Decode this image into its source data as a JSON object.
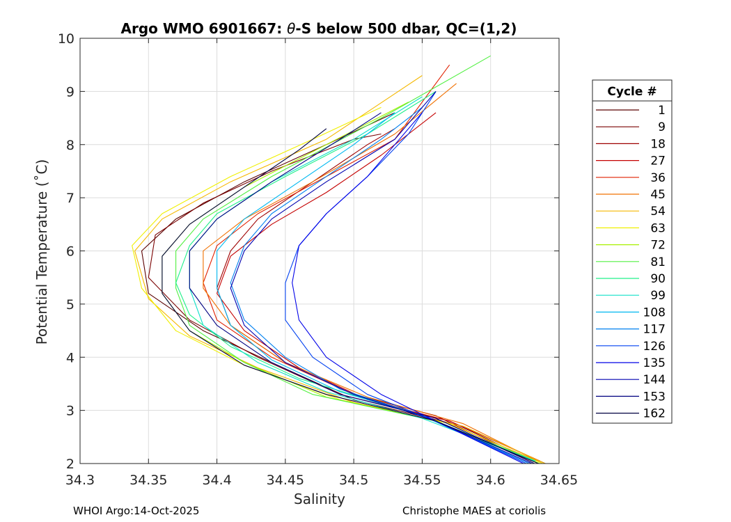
{
  "chart_data": {
    "type": "line",
    "title_prefix": "Argo WMO 6901667: ",
    "title_symbol": "θ",
    "title_suffix": "-S below 500 dbar,  QC=(1,2)",
    "xlabel": "Salinity",
    "ylabel": "Potential Temperature (˚C)",
    "xlim": [
      34.3,
      34.65
    ],
    "ylim": [
      2,
      10
    ],
    "xticks": [
      "34.3",
      "34.35",
      "34.4",
      "34.45",
      "34.5",
      "34.55",
      "34.6",
      "34.65"
    ],
    "yticks": [
      "2",
      "3",
      "4",
      "5",
      "6",
      "7",
      "8",
      "9",
      "10"
    ],
    "grid": true,
    "legend_position": "right",
    "legend": {
      "title": "Cycle #",
      "entries": [
        {
          "label": "1",
          "color": "#5a0000"
        },
        {
          "label": "9",
          "color": "#7a0000"
        },
        {
          "label": "18",
          "color": "#9e0000"
        },
        {
          "label": "27",
          "color": "#c40000"
        },
        {
          "label": "36",
          "color": "#e02000"
        },
        {
          "label": "45",
          "color": "#f07000"
        },
        {
          "label": "54",
          "color": "#f5b800"
        },
        {
          "label": "63",
          "color": "#f0f000"
        },
        {
          "label": "72",
          "color": "#a8f000"
        },
        {
          "label": "81",
          "color": "#50f040"
        },
        {
          "label": "90",
          "color": "#20f08a"
        },
        {
          "label": "99",
          "color": "#10e0c8"
        },
        {
          "label": "108",
          "color": "#00b8f0"
        },
        {
          "label": "117",
          "color": "#0080f0"
        },
        {
          "label": "126",
          "color": "#0040f0"
        },
        {
          "label": "135",
          "color": "#0000e8"
        },
        {
          "label": "144",
          "color": "#0000b0"
        },
        {
          "label": "153",
          "color": "#000080"
        },
        {
          "label": "162",
          "color": "#000040"
        }
      ]
    },
    "series": [
      {
        "name": "1",
        "color": "#5a0000",
        "points": [
          [
            34.64,
            2.0
          ],
          [
            34.58,
            2.7
          ],
          [
            34.5,
            3.2
          ],
          [
            34.44,
            3.9
          ],
          [
            34.39,
            4.5
          ],
          [
            34.35,
            5.2
          ],
          [
            34.345,
            6.0
          ],
          [
            34.37,
            6.6
          ],
          [
            34.42,
            7.3
          ],
          [
            34.48,
            8.0
          ],
          [
            34.53,
            8.6
          ]
        ]
      },
      {
        "name": "9",
        "color": "#7a0000",
        "points": [
          [
            34.635,
            2.0
          ],
          [
            34.57,
            2.8
          ],
          [
            34.49,
            3.3
          ],
          [
            34.43,
            4.0
          ],
          [
            34.38,
            4.7
          ],
          [
            34.35,
            5.5
          ],
          [
            34.355,
            6.3
          ],
          [
            34.39,
            6.9
          ],
          [
            34.44,
            7.5
          ],
          [
            34.5,
            8.1
          ],
          [
            34.52,
            8.2
          ]
        ]
      },
      {
        "name": "18",
        "color": "#9e0000",
        "points": [
          [
            34.632,
            2.0
          ],
          [
            34.56,
            2.9
          ],
          [
            34.5,
            3.3
          ],
          [
            34.45,
            3.9
          ],
          [
            34.41,
            4.6
          ],
          [
            34.4,
            5.3
          ],
          [
            34.41,
            6.0
          ],
          [
            34.43,
            6.6
          ],
          [
            34.47,
            7.3
          ],
          [
            34.51,
            8.0
          ],
          [
            34.53,
            8.3
          ]
        ]
      },
      {
        "name": "27",
        "color": "#c40000",
        "points": [
          [
            34.636,
            2.05
          ],
          [
            34.57,
            2.8
          ],
          [
            34.51,
            3.2
          ],
          [
            34.46,
            3.8
          ],
          [
            34.42,
            4.5
          ],
          [
            34.4,
            5.2
          ],
          [
            34.41,
            5.9
          ],
          [
            34.44,
            6.5
          ],
          [
            34.48,
            7.1
          ],
          [
            34.52,
            7.8
          ],
          [
            34.56,
            8.6
          ]
        ]
      },
      {
        "name": "36",
        "color": "#e02000",
        "points": [
          [
            34.634,
            2.05
          ],
          [
            34.56,
            2.85
          ],
          [
            34.5,
            3.3
          ],
          [
            34.44,
            4.0
          ],
          [
            34.4,
            4.7
          ],
          [
            34.39,
            5.4
          ],
          [
            34.4,
            6.1
          ],
          [
            34.43,
            6.7
          ],
          [
            34.48,
            7.4
          ],
          [
            34.53,
            8.1
          ],
          [
            34.57,
            9.5
          ]
        ]
      },
      {
        "name": "45",
        "color": "#f07000",
        "points": [
          [
            34.638,
            2.0
          ],
          [
            34.58,
            2.75
          ],
          [
            34.51,
            3.25
          ],
          [
            34.45,
            3.9
          ],
          [
            34.41,
            4.6
          ],
          [
            34.39,
            5.3
          ],
          [
            34.39,
            6.0
          ],
          [
            34.42,
            6.6
          ],
          [
            34.47,
            7.3
          ],
          [
            34.53,
            8.2
          ],
          [
            34.575,
            9.15
          ]
        ]
      },
      {
        "name": "54",
        "color": "#f5b800",
        "points": [
          [
            34.64,
            2.0
          ],
          [
            34.58,
            2.7
          ],
          [
            34.5,
            3.15
          ],
          [
            34.43,
            3.8
          ],
          [
            34.38,
            4.4
          ],
          [
            34.35,
            5.1
          ],
          [
            34.34,
            6.0
          ],
          [
            34.36,
            6.6
          ],
          [
            34.41,
            7.3
          ],
          [
            34.48,
            8.1
          ],
          [
            34.55,
            9.3
          ]
        ]
      },
      {
        "name": "63",
        "color": "#f0f000",
        "points": [
          [
            34.638,
            2.0
          ],
          [
            34.57,
            2.75
          ],
          [
            34.49,
            3.2
          ],
          [
            34.42,
            3.85
          ],
          [
            34.37,
            4.5
          ],
          [
            34.345,
            5.3
          ],
          [
            34.338,
            6.1
          ],
          [
            34.36,
            6.7
          ],
          [
            34.41,
            7.4
          ],
          [
            34.47,
            8.1
          ],
          [
            34.52,
            8.7
          ]
        ]
      },
      {
        "name": "72",
        "color": "#a8f000",
        "points": [
          [
            34.636,
            2.0
          ],
          [
            34.56,
            2.8
          ],
          [
            34.48,
            3.25
          ],
          [
            34.42,
            3.9
          ],
          [
            34.38,
            4.5
          ],
          [
            34.36,
            5.2
          ],
          [
            34.36,
            5.9
          ],
          [
            34.38,
            6.5
          ],
          [
            34.42,
            7.2
          ],
          [
            34.48,
            8.0
          ],
          [
            34.54,
            8.8
          ]
        ]
      },
      {
        "name": "81",
        "color": "#50f040",
        "points": [
          [
            34.635,
            2.0
          ],
          [
            34.56,
            2.8
          ],
          [
            34.47,
            3.3
          ],
          [
            34.42,
            3.9
          ],
          [
            34.38,
            4.6
          ],
          [
            34.37,
            5.3
          ],
          [
            34.37,
            6.0
          ],
          [
            34.39,
            6.6
          ],
          [
            34.44,
            7.4
          ],
          [
            34.52,
            8.5
          ],
          [
            34.6,
            9.67
          ]
        ]
      },
      {
        "name": "90",
        "color": "#20f08a",
        "points": [
          [
            34.633,
            2.05
          ],
          [
            34.55,
            2.9
          ],
          [
            34.46,
            3.6
          ],
          [
            34.41,
            4.2
          ],
          [
            34.38,
            4.8
          ],
          [
            34.37,
            5.4
          ],
          [
            34.38,
            6.1
          ],
          [
            34.4,
            6.7
          ],
          [
            34.45,
            7.4
          ],
          [
            34.51,
            8.2
          ],
          [
            34.56,
            9.0
          ]
        ]
      },
      {
        "name": "99",
        "color": "#10e0c8",
        "points": [
          [
            34.632,
            2.05
          ],
          [
            34.55,
            2.85
          ],
          [
            34.48,
            3.35
          ],
          [
            34.43,
            3.9
          ],
          [
            34.39,
            4.6
          ],
          [
            34.38,
            5.3
          ],
          [
            34.38,
            6.0
          ],
          [
            34.4,
            6.6
          ],
          [
            34.44,
            7.3
          ],
          [
            34.5,
            8.1
          ],
          [
            34.55,
            8.9
          ]
        ]
      },
      {
        "name": "108",
        "color": "#00b8f0",
        "points": [
          [
            34.63,
            2.0
          ],
          [
            34.55,
            2.9
          ],
          [
            34.49,
            3.35
          ],
          [
            34.44,
            3.95
          ],
          [
            34.41,
            4.6
          ],
          [
            34.4,
            5.3
          ],
          [
            34.4,
            6.0
          ],
          [
            34.42,
            6.6
          ],
          [
            34.46,
            7.3
          ],
          [
            34.5,
            8.0
          ],
          [
            34.53,
            8.6
          ]
        ]
      },
      {
        "name": "117",
        "color": "#0080f0",
        "points": [
          [
            34.628,
            2.0
          ],
          [
            34.55,
            2.9
          ],
          [
            34.49,
            3.4
          ],
          [
            34.45,
            4.0
          ],
          [
            34.42,
            4.7
          ],
          [
            34.41,
            5.4
          ],
          [
            34.42,
            6.1
          ],
          [
            34.44,
            6.7
          ],
          [
            34.48,
            7.4
          ],
          [
            34.52,
            8.1
          ],
          [
            34.55,
            8.7
          ]
        ]
      },
      {
        "name": "126",
        "color": "#0040f0",
        "points": [
          [
            34.626,
            2.0
          ],
          [
            34.56,
            2.8
          ],
          [
            34.51,
            3.3
          ],
          [
            34.47,
            4.0
          ],
          [
            34.45,
            4.7
          ],
          [
            34.45,
            5.4
          ],
          [
            34.46,
            6.1
          ],
          [
            34.48,
            6.7
          ],
          [
            34.51,
            7.4
          ],
          [
            34.54,
            8.2
          ],
          [
            34.56,
            9.0
          ]
        ]
      },
      {
        "name": "135",
        "color": "#0000e8",
        "points": [
          [
            34.624,
            2.0
          ],
          [
            34.56,
            2.8
          ],
          [
            34.52,
            3.3
          ],
          [
            34.48,
            4.0
          ],
          [
            34.46,
            4.7
          ],
          [
            34.455,
            5.4
          ],
          [
            34.46,
            6.1
          ],
          [
            34.48,
            6.7
          ],
          [
            34.51,
            7.4
          ],
          [
            34.53,
            8.0
          ],
          [
            34.55,
            8.6
          ]
        ]
      },
      {
        "name": "144",
        "color": "#0000b0",
        "points": [
          [
            34.63,
            2.0
          ],
          [
            34.56,
            2.8
          ],
          [
            34.5,
            3.3
          ],
          [
            34.45,
            3.9
          ],
          [
            34.42,
            4.6
          ],
          [
            34.41,
            5.3
          ],
          [
            34.42,
            6.0
          ],
          [
            34.44,
            6.6
          ],
          [
            34.48,
            7.3
          ],
          [
            34.53,
            8.1
          ],
          [
            34.56,
            9.0
          ]
        ]
      },
      {
        "name": "153",
        "color": "#000080",
        "points": [
          [
            34.632,
            2.0
          ],
          [
            34.56,
            2.85
          ],
          [
            34.49,
            3.3
          ],
          [
            34.44,
            3.9
          ],
          [
            34.4,
            4.6
          ],
          [
            34.38,
            5.3
          ],
          [
            34.38,
            6.0
          ],
          [
            34.4,
            6.6
          ],
          [
            34.44,
            7.3
          ],
          [
            34.49,
            8.1
          ],
          [
            34.52,
            8.6
          ]
        ]
      },
      {
        "name": "162",
        "color": "#000040",
        "points": [
          [
            34.635,
            2.0
          ],
          [
            34.56,
            2.8
          ],
          [
            34.48,
            3.3
          ],
          [
            34.42,
            3.85
          ],
          [
            34.38,
            4.5
          ],
          [
            34.36,
            5.2
          ],
          [
            34.36,
            5.9
          ],
          [
            34.38,
            6.5
          ],
          [
            34.42,
            7.2
          ],
          [
            34.46,
            7.9
          ],
          [
            34.48,
            8.3
          ]
        ]
      }
    ]
  },
  "footer": {
    "left": "WHOI Argo:14-Oct-2025",
    "right": "Christophe MAES at coriolis"
  }
}
